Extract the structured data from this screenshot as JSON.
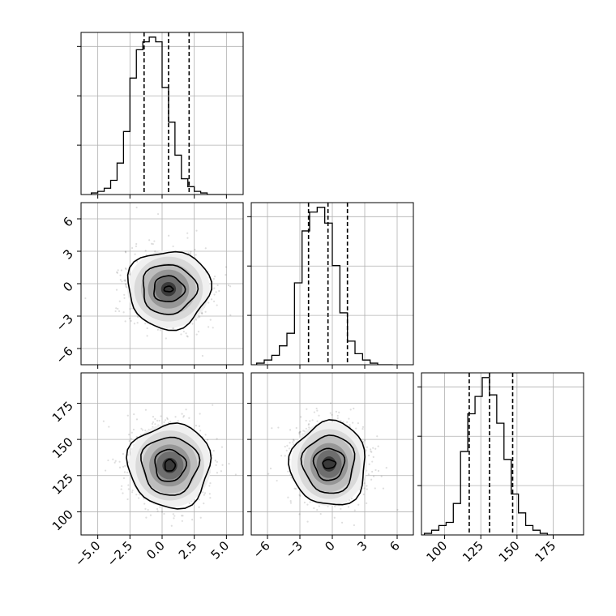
{
  "chart_data": {
    "type": "corner",
    "parameters": [
      {
        "range": [
          -6.3,
          6.3
        ],
        "ticks": [
          -5.0,
          -2.5,
          0.0,
          2.5,
          5.0
        ],
        "tick_labels": [
          "−5.0",
          "−2.5",
          "0.0",
          "2.5",
          "5.0"
        ],
        "quantile_lines": [
          -1.4,
          0.5,
          2.1
        ]
      },
      {
        "range": [
          -7.5,
          7.5
        ],
        "ticks": [
          -6,
          -3,
          0,
          3,
          6
        ],
        "tick_labels": [
          "−6",
          "−3",
          "0",
          "3",
          "6"
        ],
        "quantile_lines": [
          -2.2,
          -0.4,
          1.4
        ]
      },
      {
        "range": [
          84,
          196
        ],
        "ticks": [
          100,
          125,
          150,
          175
        ],
        "tick_labels": [
          "100",
          "125",
          "150",
          "175"
        ],
        "quantile_lines": [
          117,
          131,
          147
        ]
      }
    ],
    "histograms": [
      {
        "param": 0,
        "edges_start": -5.5,
        "bin_width": 0.5,
        "counts": [
          1,
          2,
          4,
          9,
          20,
          40,
          74,
          92,
          97,
          100,
          97,
          68,
          46,
          25,
          10,
          5,
          2,
          1,
          0,
          0,
          0
        ]
      },
      {
        "param": 1,
        "edges_start": -7.0,
        "bin_width": 0.7,
        "counts": [
          1,
          3,
          6,
          12,
          20,
          52,
          85,
          97,
          100,
          90,
          63,
          33,
          15,
          7,
          3,
          1,
          0,
          0
        ]
      },
      {
        "param": 2,
        "edges_start": 86,
        "bin_width": 5,
        "counts": [
          1,
          3,
          6,
          8,
          20,
          53,
          77,
          88,
          100,
          89,
          71,
          48,
          26,
          14,
          6,
          3,
          1,
          0,
          0,
          0,
          0,
          0
        ]
      }
    ],
    "pairs": [
      {
        "x_param": 0,
        "y_param": 1,
        "center": [
          0.5,
          -0.5
        ],
        "contour_radii": [
          [
            0.35,
            0.25
          ],
          [
            1.2,
            1.2
          ],
          [
            2.1,
            2.3
          ],
          [
            3.2,
            3.6
          ]
        ]
      },
      {
        "x_param": 0,
        "y_param": 2,
        "center": [
          0.6,
          132
        ],
        "contour_radii": [
          [
            0.4,
            4
          ],
          [
            1.2,
            11
          ],
          [
            2.2,
            20
          ],
          [
            3.2,
            29
          ]
        ]
      },
      {
        "x_param": 1,
        "y_param": 2,
        "center": [
          -0.3,
          133
        ],
        "contour_radii": [
          [
            0.6,
            3
          ],
          [
            1.4,
            11
          ],
          [
            2.4,
            20
          ],
          [
            3.5,
            29
          ]
        ]
      }
    ]
  }
}
